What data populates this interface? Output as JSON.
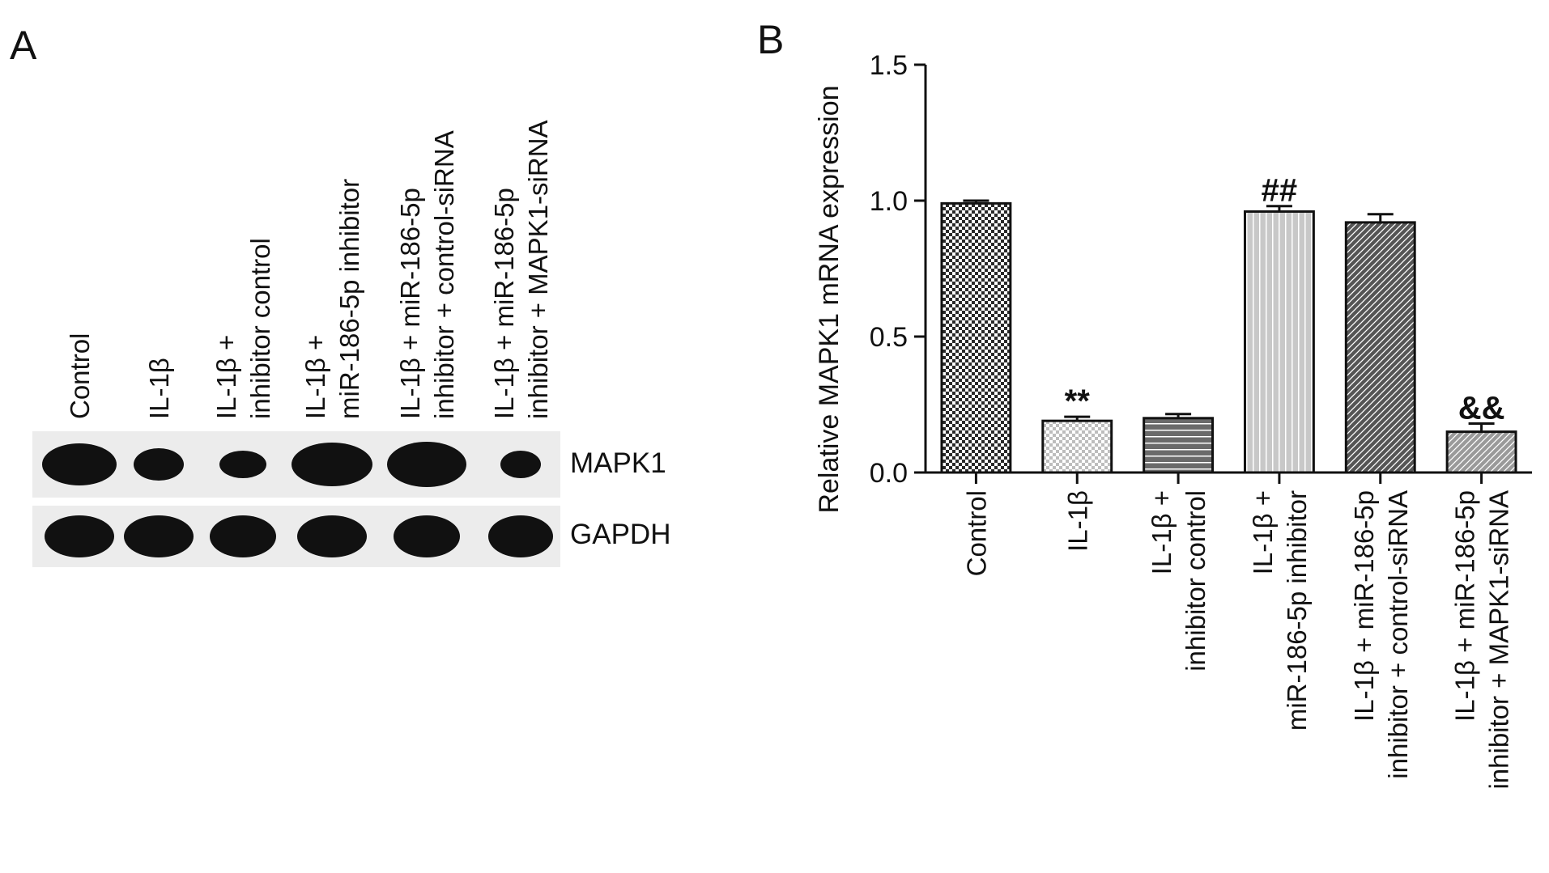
{
  "panel_labels": [
    "A",
    "B"
  ],
  "blot": {
    "lanes": [
      [
        "Control"
      ],
      [
        "IL-1β"
      ],
      [
        "IL-1β +",
        "inhibitor control"
      ],
      [
        "IL-1β +",
        "miR-186-5p inhibitor"
      ],
      [
        "IL-1β + miR-186-5p",
        "inhibitor + control-siRNA"
      ],
      [
        "IL-1β + miR-186-5p",
        "inhibitor + MAPK1-siRNA"
      ]
    ],
    "rows": [
      "MAPK1",
      "GAPDH"
    ]
  },
  "chart_data": {
    "type": "bar",
    "ylabel": "Relative MAPK1 mRNA expression",
    "categories": [
      [
        "Control"
      ],
      [
        "IL-1β"
      ],
      [
        "IL-1β +",
        "inhibitor control"
      ],
      [
        "IL-1β +",
        "miR-186-5p inhibitor"
      ],
      [
        "IL-1β + miR-186-5p",
        "inhibitor + control-siRNA"
      ],
      [
        "IL-1β + miR-186-5p",
        "inhibitor + MAPK1-siRNA"
      ]
    ],
    "values": [
      0.99,
      0.19,
      0.2,
      0.96,
      0.92,
      0.15
    ],
    "errors": [
      0.01,
      0.015,
      0.015,
      0.02,
      0.03,
      0.03
    ],
    "significance": [
      null,
      "**",
      null,
      "##",
      null,
      "&&"
    ],
    "colors": [
      "#2a2a2a",
      "#bdbdbd",
      "#6a6a6a",
      "#c8c8c8",
      "#555555",
      "#9a9a9a"
    ],
    "patterns": [
      "checker",
      "checker",
      "hlines",
      "vlines",
      "diag",
      "diag"
    ],
    "ylim": [
      0,
      1.5
    ],
    "yticks": [
      {
        "value": 0,
        "label": "0.0"
      },
      {
        "value": 0.5,
        "label": "0.5"
      },
      {
        "value": 1,
        "label": "1.0"
      },
      {
        "value": 1.5,
        "label": "1.5"
      }
    ]
  }
}
